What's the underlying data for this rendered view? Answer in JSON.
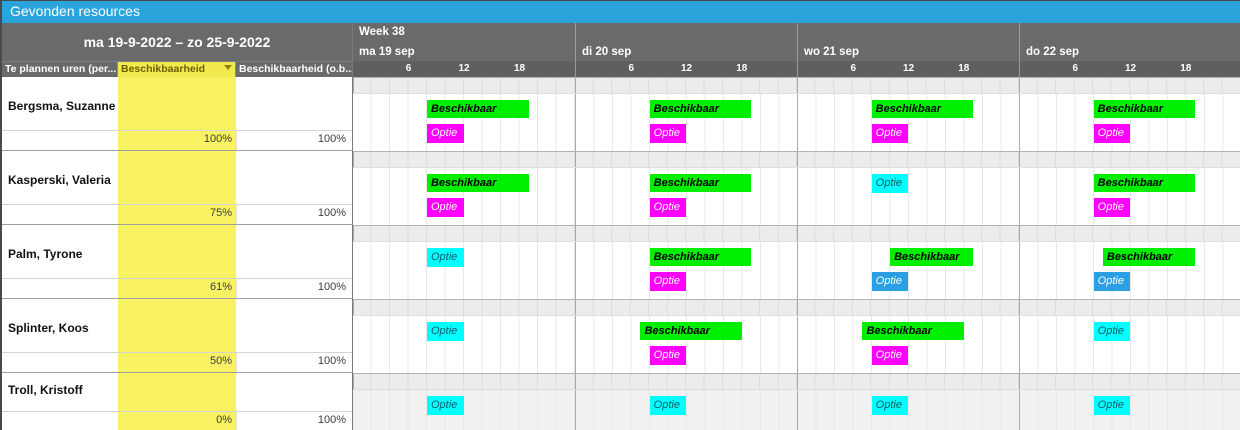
{
  "window": {
    "title": "Gevonden resources"
  },
  "colors": {
    "accent_titlebar": "#2ba4dc",
    "header_gray": "#6a6a6a",
    "tick_row_gray": "#5f5f5f",
    "highlight_yellow": "#f8f162",
    "header_yellow": "#f2e94f",
    "beschikbaar_green": "#00ee00",
    "optie_magenta": "#ff00ff",
    "optie_cyan": "#00ffff",
    "optie_blue": "#2b9fe4"
  },
  "left_panel": {
    "date_range": "ma 19-9-2022  –  zo 25-9-2022",
    "columns": [
      {
        "label": "Te plannen uren (per...",
        "highlight": false
      },
      {
        "label": "Beschikbaarheid",
        "highlight": true,
        "sort": "desc"
      },
      {
        "label": "Beschikbaarheid (o.b...",
        "highlight": false
      }
    ]
  },
  "timeline": {
    "week_label": "Week 38",
    "days": [
      {
        "label": "ma 19 sep"
      },
      {
        "label": "di 20 sep"
      },
      {
        "label": "wo 21 sep"
      },
      {
        "label": "do 22 sep"
      }
    ],
    "ticks": [
      "6",
      "12",
      "18"
    ]
  },
  "resources": [
    {
      "name": "Bergsma, Suzanne",
      "beschikbaarheid": "100%",
      "beschikbaarheid_obv": "100%",
      "dimmed": false,
      "days": [
        {
          "bars": [
            {
              "label": "Beschikbaar",
              "color": "green",
              "start": 8,
              "end": 19,
              "slot": 1
            },
            {
              "label": "Optie",
              "color": "magenta",
              "start": 8,
              "end": 12,
              "slot": 2
            }
          ]
        },
        {
          "bars": [
            {
              "label": "Beschikbaar",
              "color": "green",
              "start": 8,
              "end": 19,
              "slot": 1
            },
            {
              "label": "Optie",
              "color": "magenta",
              "start": 8,
              "end": 12,
              "slot": 2
            }
          ]
        },
        {
          "bars": [
            {
              "label": "Beschikbaar",
              "color": "green",
              "start": 8,
              "end": 19,
              "slot": 1
            },
            {
              "label": "Optie",
              "color": "magenta",
              "start": 8,
              "end": 12,
              "slot": 2
            }
          ]
        },
        {
          "bars": [
            {
              "label": "Beschikbaar",
              "color": "green",
              "start": 8,
              "end": 19,
              "slot": 1
            },
            {
              "label": "Optie",
              "color": "magenta",
              "start": 8,
              "end": 12,
              "slot": 2
            }
          ]
        }
      ]
    },
    {
      "name": "Kasperski, Valeria",
      "beschikbaarheid": "75%",
      "beschikbaarheid_obv": "100%",
      "dimmed": false,
      "days": [
        {
          "bars": [
            {
              "label": "Beschikbaar",
              "color": "green",
              "start": 8,
              "end": 19,
              "slot": 1
            },
            {
              "label": "Optie",
              "color": "magenta",
              "start": 8,
              "end": 12,
              "slot": 2
            }
          ]
        },
        {
          "bars": [
            {
              "label": "Beschikbaar",
              "color": "green",
              "start": 8,
              "end": 19,
              "slot": 1
            },
            {
              "label": "Optie",
              "color": "magenta",
              "start": 8,
              "end": 12,
              "slot": 2
            }
          ]
        },
        {
          "bars": [
            {
              "label": "Optie",
              "color": "cyan",
              "start": 8,
              "end": 12,
              "slot": 1
            }
          ]
        },
        {
          "bars": [
            {
              "label": "Beschikbaar",
              "color": "green",
              "start": 8,
              "end": 19,
              "slot": 1
            },
            {
              "label": "Optie",
              "color": "magenta",
              "start": 8,
              "end": 12,
              "slot": 2
            }
          ]
        }
      ]
    },
    {
      "name": "Palm, Tyrone",
      "beschikbaarheid": "61%",
      "beschikbaarheid_obv": "100%",
      "dimmed": false,
      "days": [
        {
          "bars": [
            {
              "label": "Optie",
              "color": "cyan",
              "start": 8,
              "end": 12,
              "slot": 1
            }
          ]
        },
        {
          "bars": [
            {
              "label": "Beschikbaar",
              "color": "green",
              "start": 8,
              "end": 19,
              "slot": 1
            },
            {
              "label": "Optie",
              "color": "magenta",
              "start": 8,
              "end": 12,
              "slot": 2
            }
          ]
        },
        {
          "bars": [
            {
              "label": "Beschikbaar",
              "color": "green",
              "start": 10,
              "end": 19,
              "slot": 1
            },
            {
              "label": "Optie",
              "color": "blue",
              "start": 8,
              "end": 12,
              "slot": 2
            }
          ]
        },
        {
          "bars": [
            {
              "label": "Beschikbaar",
              "color": "green",
              "start": 9,
              "end": 19,
              "slot": 1
            },
            {
              "label": "Optie",
              "color": "blue",
              "start": 8,
              "end": 12,
              "slot": 2
            }
          ]
        }
      ]
    },
    {
      "name": "Splinter, Koos",
      "beschikbaarheid": "50%",
      "beschikbaarheid_obv": "100%",
      "dimmed": false,
      "days": [
        {
          "bars": [
            {
              "label": "Optie",
              "color": "cyan",
              "start": 8,
              "end": 12,
              "slot": 1
            }
          ]
        },
        {
          "bars": [
            {
              "label": "Beschikbaar",
              "color": "green",
              "start": 7,
              "end": 18,
              "slot": 1
            },
            {
              "label": "Optie",
              "color": "magenta",
              "start": 8,
              "end": 12,
              "slot": 2
            }
          ]
        },
        {
          "bars": [
            {
              "label": "Beschikbaar",
              "color": "green",
              "start": 7,
              "end": 18,
              "slot": 1
            },
            {
              "label": "Optie",
              "color": "magenta",
              "start": 8,
              "end": 12,
              "slot": 2
            }
          ]
        },
        {
          "bars": [
            {
              "label": "Optie",
              "color": "cyan",
              "start": 8,
              "end": 12,
              "slot": 1
            }
          ]
        }
      ]
    },
    {
      "name": "Troll, Kristoff",
      "beschikbaarheid": "0%",
      "beschikbaarheid_obv": "100%",
      "dimmed": true,
      "days": [
        {
          "bars": [
            {
              "label": "Optie",
              "color": "cyan",
              "start": 8,
              "end": 12,
              "slot": 1
            }
          ]
        },
        {
          "bars": [
            {
              "label": "Optie",
              "color": "cyan",
              "start": 8,
              "end": 12,
              "slot": 1
            }
          ]
        },
        {
          "bars": [
            {
              "label": "Optie",
              "color": "cyan",
              "start": 8,
              "end": 12,
              "slot": 1
            }
          ]
        },
        {
          "bars": [
            {
              "label": "Optie",
              "color": "cyan",
              "start": 8,
              "end": 12,
              "slot": 1
            }
          ]
        }
      ]
    }
  ]
}
